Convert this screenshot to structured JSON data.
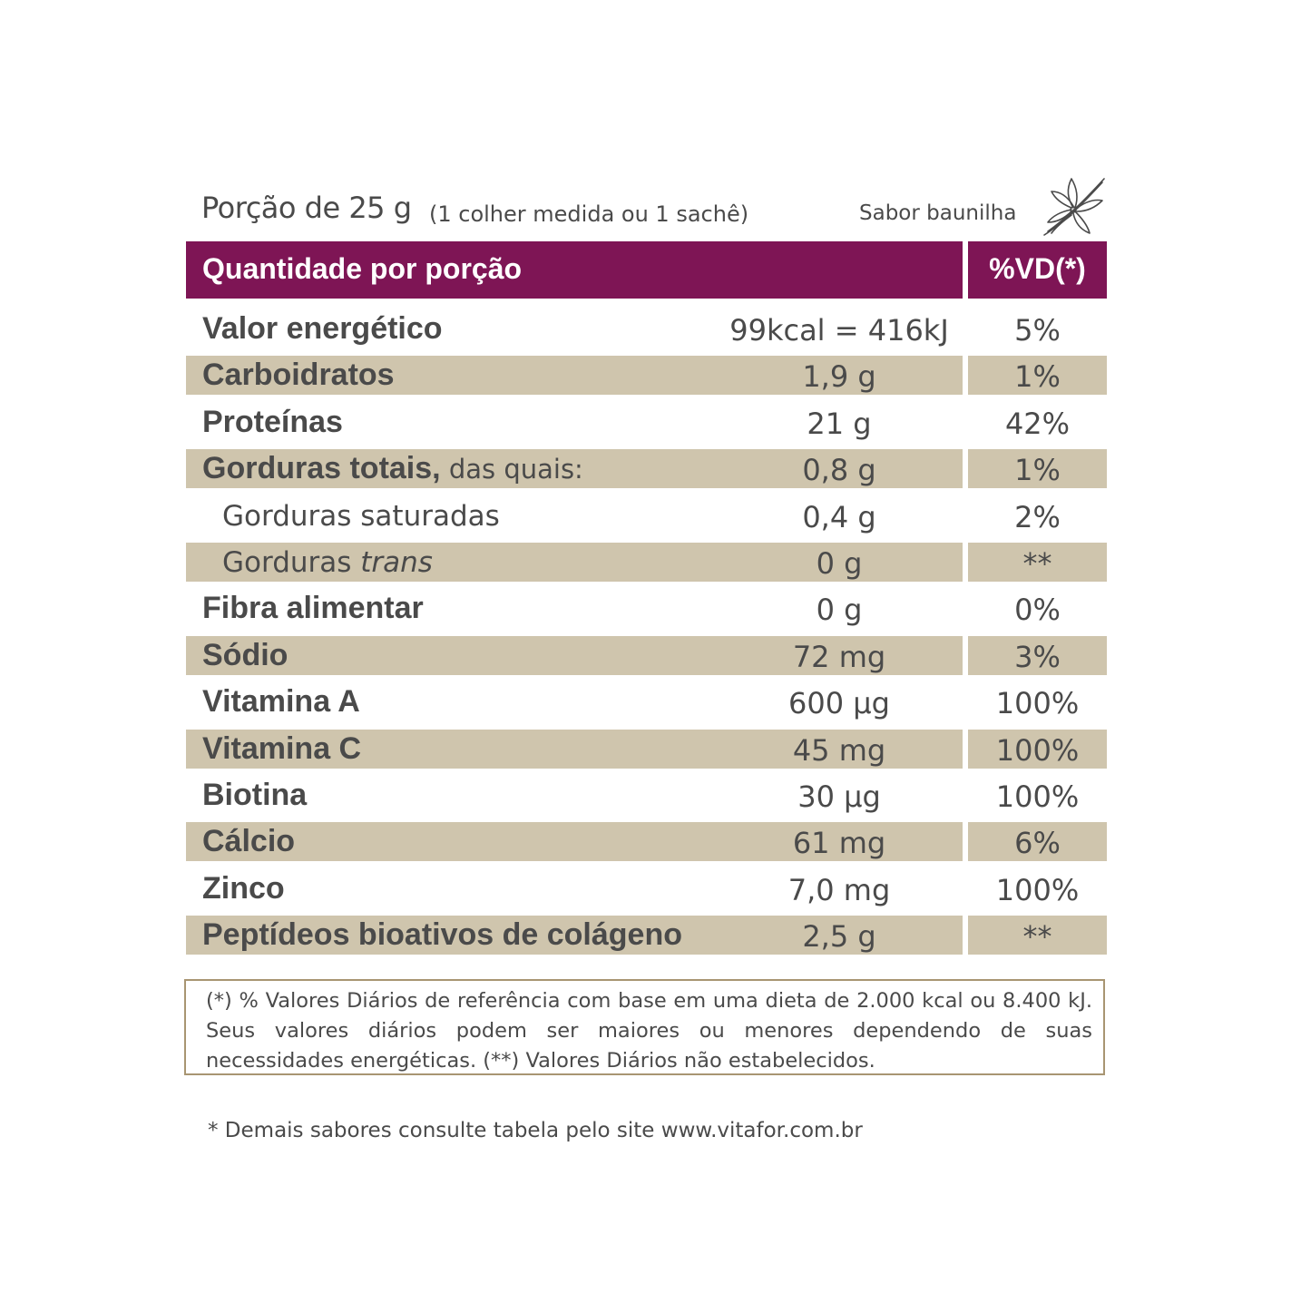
{
  "serving": {
    "main": "Porção de 25 g",
    "detail": "(1 colher medida ou 1 sachê)",
    "flavor": "Sabor baunilha",
    "flavor_icon": "vanilla-flower-icon"
  },
  "header": {
    "left": "Quantidade por porção",
    "right": "%VD(*)",
    "color": "#7e1555"
  },
  "rows": [
    {
      "name": "Valor energético",
      "suffix": "",
      "amount": "99kcal = 416kJ",
      "vd": "5%",
      "shaded": false
    },
    {
      "name": "Carboidratos",
      "suffix": "",
      "amount": "1,9 g",
      "vd": "1%",
      "shaded": true
    },
    {
      "name": "Proteínas",
      "suffix": "",
      "amount": "21 g",
      "vd": "42%",
      "shaded": false
    },
    {
      "name": "Gorduras totais,",
      "suffix": " das quais:",
      "amount": "0,8 g",
      "vd": "1%",
      "shaded": true
    },
    {
      "name": "Gorduras saturadas",
      "suffix": "",
      "amount": "0,4 g",
      "vd": "2%",
      "shaded": false,
      "sub": true
    },
    {
      "name": "Gorduras ",
      "italic": "trans",
      "suffix": "",
      "amount": "0 g",
      "vd": "**",
      "shaded": true,
      "sub": true
    },
    {
      "name": "Fibra alimentar",
      "suffix": "",
      "amount": "0 g",
      "vd": "0%",
      "shaded": false
    },
    {
      "name": "Sódio",
      "suffix": "",
      "amount": "72 mg",
      "vd": "3%",
      "shaded": true
    },
    {
      "name": "Vitamina A",
      "suffix": "",
      "amount": "600 µg",
      "vd": "100%",
      "shaded": false
    },
    {
      "name": "Vitamina C",
      "suffix": "",
      "amount": "45 mg",
      "vd": "100%",
      "shaded": true
    },
    {
      "name": "Biotina",
      "suffix": "",
      "amount": "30 µg",
      "vd": "100%",
      "shaded": false
    },
    {
      "name": "Cálcio",
      "suffix": "",
      "amount": "61 mg",
      "vd": "6%",
      "shaded": true
    },
    {
      "name": "Zinco",
      "suffix": "",
      "amount": "7,0 mg",
      "vd": "100%",
      "shaded": false
    },
    {
      "name": "Peptídeos bioativos de colágeno",
      "suffix": "",
      "amount": "2,5 g",
      "vd": "**",
      "shaded": true
    }
  ],
  "colors": {
    "shade": "#cfc5ad",
    "text": "#4a4a4a",
    "border": "#a89572"
  },
  "footnote": "(*) % Valores Diários de referência com base em uma dieta de 2.000 kcal ou 8.400 kJ. Seus valores diários podem ser maiores ou menores dependendo de suas necessidades energéticas. (**) Valores Diários não estabelecidos.",
  "bottom_note": "* Demais sabores consulte tabela pelo site www.vitafor.com.br"
}
